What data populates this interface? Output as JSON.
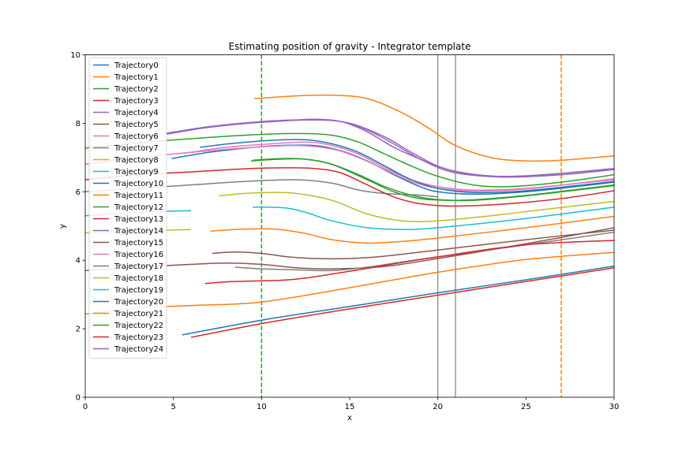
{
  "chart_data": {
    "type": "line",
    "title": "Estimating position of gravity - Integrator template",
    "xlabel": "x",
    "ylabel": "y",
    "xlim": [
      0,
      30
    ],
    "ylim": [
      0,
      10
    ],
    "xticks": [
      0,
      5,
      10,
      15,
      20,
      25,
      30
    ],
    "yticks": [
      0,
      2,
      4,
      6,
      8,
      10
    ],
    "grid": false,
    "legend_position": "upper-left",
    "vertical_lines": [
      {
        "x": 10,
        "color": "#2ca02c",
        "style": "dashed"
      },
      {
        "x": 27,
        "color": "#ff7f0e",
        "style": "dashed"
      },
      {
        "x": 20,
        "color": "#808080",
        "style": "solid"
      },
      {
        "x": 21,
        "color": "#808080",
        "style": "solid"
      }
    ],
    "series": [
      {
        "name": "Trajectory0",
        "color": "#1f77b4",
        "points": [
          [
            5.5,
            1.82
          ],
          [
            10,
            2.25
          ],
          [
            15,
            2.65
          ],
          [
            20,
            3.05
          ],
          [
            25,
            3.43
          ],
          [
            30,
            3.83
          ]
        ]
      },
      {
        "name": "Trajectory1",
        "color": "#ff7f0e",
        "points": [
          [
            9.6,
            8.72
          ],
          [
            12,
            8.8
          ],
          [
            14,
            8.82
          ],
          [
            16,
            8.72
          ],
          [
            18,
            8.3
          ],
          [
            19.5,
            7.85
          ],
          [
            21,
            7.35
          ],
          [
            23,
            7.0
          ],
          [
            25,
            6.9
          ],
          [
            27,
            6.92
          ],
          [
            30,
            7.05
          ]
        ]
      },
      {
        "name": "Trajectory2",
        "color": "#2ca02c",
        "points": [
          [
            9.5,
            6.92
          ],
          [
            11,
            6.97
          ],
          [
            12.5,
            6.95
          ],
          [
            14,
            6.8
          ],
          [
            16,
            6.35
          ],
          [
            17.5,
            6.0
          ],
          [
            19,
            5.8
          ],
          [
            21,
            5.75
          ],
          [
            23,
            5.8
          ],
          [
            26,
            5.95
          ],
          [
            30,
            6.2
          ]
        ]
      },
      {
        "name": "Trajectory3",
        "color": "#d62728",
        "points": [
          [
            6.0,
            1.75
          ],
          [
            10,
            2.15
          ],
          [
            15,
            2.58
          ],
          [
            20,
            2.98
          ],
          [
            25,
            3.38
          ],
          [
            30,
            3.78
          ]
        ]
      },
      {
        "name": "Trajectory4",
        "color": "#9467bd",
        "points": [
          [
            4.5,
            7.7
          ],
          [
            7,
            7.9
          ],
          [
            10,
            8.05
          ],
          [
            13,
            8.1
          ],
          [
            15,
            8.0
          ],
          [
            17,
            7.6
          ],
          [
            18.5,
            7.15
          ],
          [
            20,
            6.75
          ],
          [
            21.5,
            6.55
          ],
          [
            23.5,
            6.45
          ],
          [
            26,
            6.5
          ],
          [
            30,
            6.68
          ]
        ]
      },
      {
        "name": "Trajectory5",
        "color": "#8c564b",
        "points": [
          [
            0,
            3.7
          ],
          [
            3,
            3.8
          ],
          [
            6,
            3.88
          ],
          [
            8,
            3.92
          ],
          [
            10,
            3.88
          ],
          [
            12,
            3.78
          ],
          [
            14,
            3.75
          ],
          [
            17,
            3.82
          ],
          [
            20,
            4.05
          ],
          [
            25,
            4.48
          ],
          [
            30,
            4.95
          ]
        ]
      },
      {
        "name": "Trajectory6",
        "color": "#e377c2",
        "points": [
          [
            5.7,
            7.13
          ],
          [
            8,
            7.3
          ],
          [
            10,
            7.38
          ],
          [
            12.5,
            7.45
          ],
          [
            14,
            7.35
          ],
          [
            15.5,
            7.1
          ],
          [
            17,
            6.7
          ],
          [
            18.5,
            6.35
          ],
          [
            20,
            6.15
          ],
          [
            22,
            6.05
          ],
          [
            25,
            6.1
          ],
          [
            30,
            6.35
          ]
        ]
      },
      {
        "name": "Trajectory7",
        "color": "#7f7f7f",
        "points": [
          [
            8.5,
            3.8
          ],
          [
            10,
            3.75
          ],
          [
            12,
            3.72
          ],
          [
            14,
            3.7
          ],
          [
            16,
            3.8
          ],
          [
            18,
            3.95
          ],
          [
            20,
            4.1
          ],
          [
            25,
            4.45
          ],
          [
            30,
            4.82
          ]
        ]
      },
      {
        "name": "Trajectory8",
        "color": "#bcbd22",
        "points": [
          [
            7.6,
            5.88
          ],
          [
            9,
            5.95
          ],
          [
            10.5,
            5.98
          ],
          [
            12,
            5.95
          ],
          [
            14,
            5.75
          ],
          [
            16,
            5.35
          ],
          [
            18,
            5.15
          ],
          [
            20,
            5.15
          ],
          [
            23,
            5.3
          ],
          [
            26,
            5.48
          ],
          [
            30,
            5.72
          ]
        ]
      },
      {
        "name": "Trajectory9",
        "color": "#17becf",
        "points": [
          [
            9.5,
            5.55
          ],
          [
            10.5,
            5.55
          ],
          [
            11.5,
            5.52
          ],
          [
            12.5,
            5.4
          ],
          [
            14,
            5.15
          ],
          [
            16,
            4.95
          ],
          [
            18,
            4.9
          ],
          [
            20,
            4.95
          ],
          [
            25,
            5.22
          ],
          [
            30,
            5.55
          ]
        ]
      },
      {
        "name": "Trajectory10",
        "color": "#1f77b4",
        "points": [
          [
            4.9,
            6.97
          ],
          [
            7,
            7.15
          ],
          [
            9,
            7.27
          ],
          [
            11,
            7.35
          ],
          [
            13,
            7.35
          ],
          [
            14.5,
            7.2
          ],
          [
            16,
            6.9
          ],
          [
            17.5,
            6.5
          ],
          [
            19,
            6.15
          ],
          [
            20,
            6.0
          ],
          [
            22,
            5.93
          ],
          [
            25,
            6.0
          ],
          [
            30,
            6.28
          ]
        ]
      },
      {
        "name": "Trajectory11",
        "color": "#ff7f0e",
        "points": [
          [
            0,
            2.43
          ],
          [
            3,
            2.6
          ],
          [
            6,
            2.68
          ],
          [
            10,
            2.78
          ],
          [
            15,
            3.2
          ],
          [
            20,
            3.65
          ],
          [
            25,
            4.02
          ],
          [
            30,
            4.23
          ]
        ]
      },
      {
        "name": "Trajectory12",
        "color": "#2ca02c",
        "points": [
          [
            0,
            7.28
          ],
          [
            3,
            7.43
          ],
          [
            6,
            7.55
          ],
          [
            9,
            7.65
          ],
          [
            12,
            7.7
          ],
          [
            14,
            7.65
          ],
          [
            15.5,
            7.45
          ],
          [
            17,
            7.1
          ],
          [
            18.5,
            6.75
          ],
          [
            20,
            6.45
          ],
          [
            22,
            6.2
          ],
          [
            24,
            6.15
          ],
          [
            27,
            6.28
          ],
          [
            30,
            6.5
          ]
        ]
      },
      {
        "name": "Trajectory13",
        "color": "#d62728",
        "points": [
          [
            6.8,
            3.32
          ],
          [
            8,
            3.37
          ],
          [
            10,
            3.4
          ],
          [
            12,
            3.45
          ],
          [
            15,
            3.68
          ],
          [
            20,
            4.1
          ],
          [
            25,
            4.45
          ],
          [
            30,
            4.58
          ]
        ]
      },
      {
        "name": "Trajectory14",
        "color": "#9467bd",
        "points": [
          [
            9.6,
            8.02
          ],
          [
            11,
            8.06
          ],
          [
            13,
            8.12
          ],
          [
            14.5,
            8.05
          ],
          [
            16,
            7.8
          ],
          [
            17.5,
            7.4
          ],
          [
            19,
            6.95
          ],
          [
            20.5,
            6.62
          ],
          [
            22,
            6.48
          ],
          [
            24,
            6.43
          ],
          [
            27,
            6.5
          ],
          [
            30,
            6.65
          ]
        ]
      },
      {
        "name": "Trajectory15",
        "color": "#8c564b",
        "points": [
          [
            7.2,
            4.2
          ],
          [
            8.5,
            4.24
          ],
          [
            10,
            4.2
          ],
          [
            11.5,
            4.1
          ],
          [
            13,
            4.05
          ],
          [
            15,
            4.05
          ],
          [
            17,
            4.12
          ],
          [
            20,
            4.3
          ],
          [
            25,
            4.6
          ],
          [
            30,
            4.88
          ]
        ]
      },
      {
        "name": "Trajectory16",
        "color": "#e377c2",
        "points": [
          [
            0,
            6.8
          ],
          [
            3,
            7.0
          ],
          [
            6,
            7.15
          ],
          [
            9,
            7.28
          ],
          [
            12,
            7.35
          ],
          [
            14,
            7.25
          ],
          [
            15.5,
            7.0
          ],
          [
            17,
            6.65
          ],
          [
            18.5,
            6.3
          ],
          [
            20,
            6.1
          ],
          [
            22,
            6.02
          ],
          [
            25,
            6.08
          ],
          [
            30,
            6.38
          ]
        ]
      },
      {
        "name": "Trajectory17",
        "color": "#7f7f7f",
        "points": [
          [
            0,
            6.0
          ],
          [
            3,
            6.1
          ],
          [
            6,
            6.2
          ],
          [
            9,
            6.3
          ],
          [
            12,
            6.35
          ],
          [
            14,
            6.25
          ],
          [
            15.5,
            6.05
          ],
          [
            17,
            5.95
          ],
          [
            19,
            5.9
          ],
          [
            20,
            5.85
          ]
        ]
      },
      {
        "name": "Trajectory18",
        "color": "#bcbd22",
        "points": [
          [
            0,
            4.8
          ],
          [
            3,
            4.85
          ],
          [
            6,
            4.9
          ]
        ]
      },
      {
        "name": "Trajectory19",
        "color": "#17becf",
        "points": [
          [
            0,
            5.3
          ],
          [
            3,
            5.4
          ],
          [
            6,
            5.45
          ]
        ]
      },
      {
        "name": "Trajectory20",
        "color": "#1f77b4",
        "points": [
          [
            6.5,
            7.3
          ],
          [
            8.5,
            7.42
          ],
          [
            10.5,
            7.5
          ],
          [
            12.5,
            7.52
          ],
          [
            14,
            7.4
          ],
          [
            15.5,
            7.15
          ],
          [
            17,
            6.75
          ],
          [
            18.5,
            6.35
          ],
          [
            20,
            6.1
          ],
          [
            22,
            5.98
          ],
          [
            25,
            6.03
          ],
          [
            30,
            6.3
          ]
        ]
      },
      {
        "name": "Trajectory21",
        "color": "#ff7f0e",
        "points": [
          [
            7.1,
            4.85
          ],
          [
            8.5,
            4.9
          ],
          [
            10,
            4.92
          ],
          [
            11,
            4.9
          ],
          [
            12.5,
            4.78
          ],
          [
            14,
            4.6
          ],
          [
            16,
            4.5
          ],
          [
            18,
            4.55
          ],
          [
            20,
            4.65
          ],
          [
            25,
            4.95
          ],
          [
            30,
            5.28
          ]
        ]
      },
      {
        "name": "Trajectory22",
        "color": "#2ca02c",
        "points": [
          [
            9.4,
            6.9
          ],
          [
            11,
            6.95
          ],
          [
            12.5,
            6.95
          ],
          [
            14,
            6.8
          ],
          [
            15.5,
            6.5
          ],
          [
            17,
            6.15
          ],
          [
            18.5,
            5.9
          ],
          [
            20,
            5.77
          ],
          [
            22,
            5.75
          ],
          [
            25,
            5.88
          ],
          [
            30,
            6.18
          ]
        ]
      },
      {
        "name": "Trajectory23",
        "color": "#d62728",
        "points": [
          [
            0,
            6.35
          ],
          [
            3,
            6.5
          ],
          [
            6,
            6.58
          ],
          [
            9,
            6.67
          ],
          [
            11.5,
            6.7
          ],
          [
            13,
            6.68
          ],
          [
            14.5,
            6.55
          ],
          [
            16,
            6.2
          ],
          [
            17.5,
            5.85
          ],
          [
            19,
            5.65
          ],
          [
            21,
            5.58
          ],
          [
            24,
            5.65
          ],
          [
            27,
            5.8
          ],
          [
            30,
            6.03
          ]
        ]
      },
      {
        "name": "Trajectory24",
        "color": "#9467bd",
        "points": [
          [
            4.6,
            7.68
          ],
          [
            7,
            7.88
          ],
          [
            10,
            8.03
          ],
          [
            13,
            8.1
          ],
          [
            14.5,
            8.05
          ],
          [
            16,
            7.75
          ],
          [
            17.5,
            7.3
          ],
          [
            19,
            6.95
          ],
          [
            20.5,
            6.62
          ],
          [
            22,
            6.5
          ],
          [
            24,
            6.43
          ],
          [
            27,
            6.5
          ],
          [
            30,
            6.65
          ]
        ]
      }
    ]
  }
}
